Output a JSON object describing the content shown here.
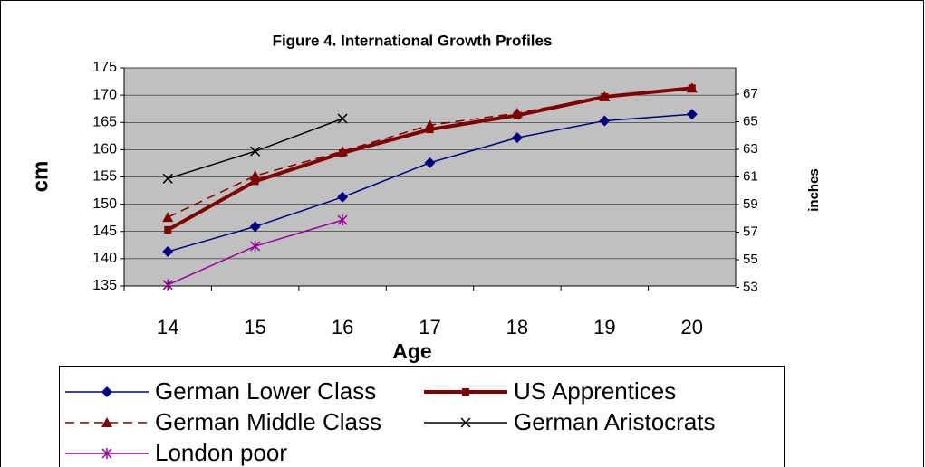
{
  "chart_data": {
    "type": "line",
    "title": "Figure 4. International Growth Profiles",
    "ylabel": "cm",
    "y2label": "inches",
    "xlabel": "Age",
    "categories": [
      "14",
      "15",
      "16",
      "17",
      "18",
      "19",
      "20"
    ],
    "ylim": [
      135,
      175
    ],
    "yticks": [
      135,
      140,
      145,
      150,
      155,
      160,
      165,
      170,
      175
    ],
    "y2lim": [
      53.1,
      68.9
    ],
    "y2ticks": [
      53,
      55,
      57,
      59,
      61,
      63,
      65,
      67
    ],
    "grid": true,
    "legend": "bottom",
    "series": [
      {
        "name": "German Lower Class",
        "color": "#000080",
        "marker": "diamond",
        "line_style": "solid",
        "values": [
          141.3,
          145.9,
          151.3,
          157.6,
          162.2,
          165.3,
          166.5
        ]
      },
      {
        "name": "US Apprentices",
        "color": "#800000",
        "marker": "square",
        "line_style": "thick",
        "values": [
          145.3,
          154.2,
          159.4,
          163.7,
          166.3,
          169.7,
          171.3
        ]
      },
      {
        "name": "German Middle Class",
        "color": "#800000",
        "marker": "triangle",
        "line_style": "dashed",
        "values": [
          147.6,
          155.2,
          159.7,
          164.5,
          166.7,
          169.7,
          171.3
        ]
      },
      {
        "name": "German Aristocrats",
        "color": "#000000",
        "marker": "x",
        "line_style": "solid",
        "values": [
          154.7,
          159.7,
          165.7,
          null,
          null,
          null,
          null
        ]
      },
      {
        "name": "London poor",
        "color": "#990099",
        "marker": "asterisk",
        "line_style": "solid",
        "values": [
          135.2,
          142.3,
          147.1,
          null,
          null,
          null,
          null
        ]
      }
    ]
  }
}
